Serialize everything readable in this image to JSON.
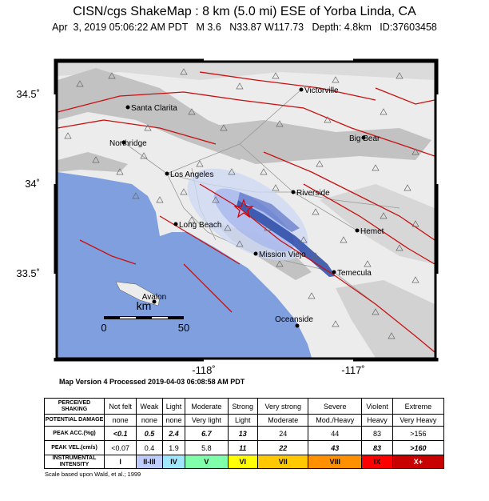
{
  "header": {
    "title": "CISN/cgs ShakeMap : 8 km (5.0 mi) ESE of Yorba Linda, CA",
    "subtitle": "Apr  3, 2019 05:06:22 AM PDT   M 3.6   N33.87 W117.73   Depth: 4.8km   ID:37603458"
  },
  "map": {
    "lat_labels": [
      "34.5˚",
      "34˚",
      "33.5˚"
    ],
    "lon_labels": [
      "-118˚",
      "-117˚"
    ],
    "cities": [
      "Victorville",
      "Santa Clarita",
      "Northridge",
      "Big Bear",
      "Los Angeles",
      "Riverside",
      "Long Beach",
      "Hemet",
      "Mission Viejo",
      "Temecula",
      "Oceanside",
      "Avalon"
    ],
    "scale": {
      "unit": "km",
      "labels": [
        "0",
        "50"
      ]
    }
  },
  "version": "Map Version 4 Processed 2019-04-03 06:08:58 AM PDT",
  "legend": {
    "rows": [
      [
        "PERCEIVED SHAKING",
        "Not felt",
        "Weak",
        "Light",
        "Moderate",
        "Strong",
        "Very strong",
        "Severe",
        "Violent",
        "Extreme"
      ],
      [
        "POTENTIAL DAMAGE",
        "none",
        "none",
        "none",
        "Very light",
        "Light",
        "Moderate",
        "Mod./Heavy",
        "Heavy",
        "Very Heavy"
      ],
      [
        "PEAK ACC.(%g)",
        "<0.1",
        "0.5",
        "2.4",
        "6.7",
        "13",
        "24",
        "44",
        "83",
        ">156"
      ],
      [
        "PEAK VEL.(cm/s)",
        "<0.07",
        "0.4",
        "1.9",
        "5.8",
        "11",
        "22",
        "43",
        "83",
        ">160"
      ],
      [
        "INSTRUMENTAL INTENSITY",
        "I",
        "II-III",
        "IV",
        "V",
        "VI",
        "VII",
        "VIII",
        "IX",
        "X+"
      ]
    ]
  },
  "footnote": "Scale based upon Wald, et al.; 1999"
}
